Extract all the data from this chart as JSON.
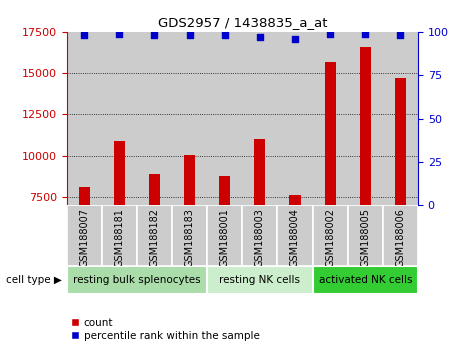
{
  "title": "GDS2957 / 1438835_a_at",
  "samples": [
    "GSM188007",
    "GSM188181",
    "GSM188182",
    "GSM188183",
    "GSM188001",
    "GSM188003",
    "GSM188004",
    "GSM188002",
    "GSM188005",
    "GSM188006"
  ],
  "counts": [
    8100,
    10900,
    8900,
    10050,
    8750,
    11000,
    7600,
    15700,
    16600,
    14700
  ],
  "percentile_ranks": [
    98,
    99,
    98,
    98,
    98,
    97,
    96,
    99,
    99,
    98
  ],
  "cell_types": [
    {
      "label": "resting bulk splenocytes",
      "start": 0,
      "end": 4,
      "color": "#aaddaa"
    },
    {
      "label": "resting NK cells",
      "start": 4,
      "end": 7,
      "color": "#cceecc"
    },
    {
      "label": "activated NK cells",
      "start": 7,
      "end": 10,
      "color": "#33cc33"
    }
  ],
  "bar_color": "#cc0000",
  "dot_color": "#0000cc",
  "ylim_left": [
    7000,
    17500
  ],
  "ylim_right": [
    0,
    100
  ],
  "yticks_left": [
    7500,
    10000,
    12500,
    15000,
    17500
  ],
  "yticks_right": [
    0,
    25,
    50,
    75,
    100
  ],
  "left_tick_color": "#cc0000",
  "right_tick_color": "#0000cc",
  "bg_color_samples": "#cccccc",
  "legend_count_label": "count",
  "legend_percentile_label": "percentile rank within the sample"
}
